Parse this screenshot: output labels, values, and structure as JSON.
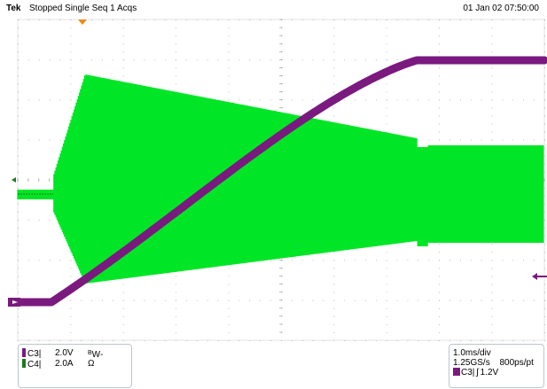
{
  "header": {
    "brand": "Tek",
    "status": "Stopped Single Seq 1 Acqs",
    "datetime": "01 Jan 02 07:50:00"
  },
  "colors": {
    "background": "#ffffff",
    "grid_dot": "#9a9a9a",
    "ch3": "#7a1a7f",
    "ch4": "#00e626",
    "trigger_marker": "#f08a16"
  },
  "display": {
    "grid_divisions": {
      "horizontal": 10,
      "vertical": 8
    }
  },
  "channels": [
    {
      "name": "C3",
      "scale": "2.0V",
      "extra_main": "B",
      "extra_sub": "W",
      "extra_tail": "-",
      "color": "#7a1a7f"
    },
    {
      "name": "C4",
      "scale": "2.0A",
      "extra_main": "Ω",
      "extra_sub": "",
      "extra_tail": "",
      "color": "#1c7a1c"
    }
  ],
  "timebase": {
    "div": "1.0ms/div",
    "rate": "1.25GS/s",
    "resolution": "800ps/pt",
    "trigger_channel": "C3",
    "trigger_symbol": "ʃ",
    "trigger_level": "1.2V"
  },
  "markers": {
    "ch3_ground": "→",
    "ch4_ground": "◂",
    "trigger_level": "◂",
    "trigger_position": "▾"
  }
}
